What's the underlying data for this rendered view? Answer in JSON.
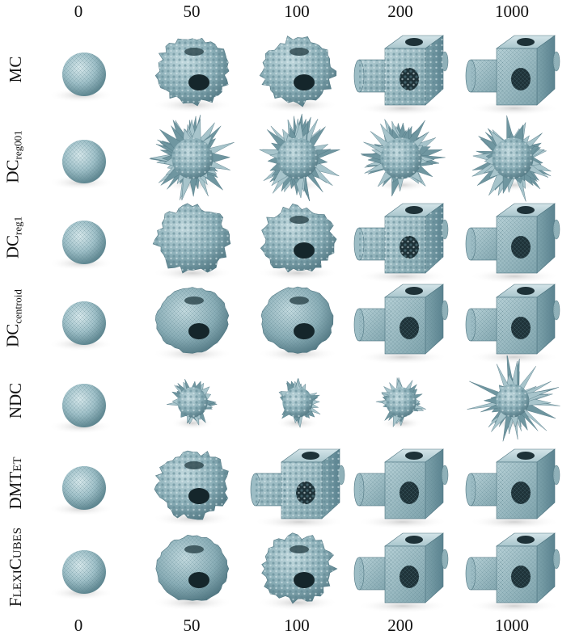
{
  "columns_top": [
    "0",
    "50",
    "100",
    "200",
    "1000"
  ],
  "columns_bottom": [
    "0",
    "50",
    "100",
    "200",
    "1000"
  ],
  "rows": [
    {
      "label": "MC",
      "sub": "",
      "shapes": [
        "sphere",
        "rough-blob-hole",
        "rough-blob-hole",
        "cube-cyl-rough",
        "cube-cyl-mesh"
      ]
    },
    {
      "label": "DC",
      "sub": "reg001",
      "shapes": [
        "sphere",
        "spiky-blob",
        "spiky-blob",
        "spiky-blob",
        "spiky-blob"
      ]
    },
    {
      "label": "DC",
      "sub": "reg1",
      "shapes": [
        "sphere",
        "rough-blob",
        "rough-blob-hole",
        "cube-cyl-rough",
        "cube-cyl-mesh"
      ]
    },
    {
      "label": "DC",
      "sub": "centroid",
      "shapes": [
        "sphere",
        "smooth-blob-hole",
        "smooth-blob-hole",
        "cube-cyl-mesh",
        "cube-cyl-mesh"
      ]
    },
    {
      "label": "NDC",
      "sub": "",
      "shapes": [
        "sphere",
        "small-spiky",
        "small-spiky",
        "small-spiky",
        "large-spiky"
      ]
    },
    {
      "label": "DMTet",
      "sub": "",
      "smallcaps": true,
      "shapes": [
        "sphere",
        "rough-blob-hole",
        "cube-cyl-rough",
        "cube-cyl-mesh",
        "cube-cyl-mesh"
      ]
    },
    {
      "label": "FlexiCubes",
      "sub": "",
      "smallcaps": true,
      "shapes": [
        "sphere",
        "smooth-blob-hole",
        "rough-blob-hole",
        "cube-cyl-mesh",
        "cube-cyl-mesh"
      ]
    }
  ],
  "colors": {
    "mesh": "#8fb4bd",
    "mesh_dark": "#4d7480",
    "mesh_light": "#c8dde1",
    "shadow": "#d9d9d9"
  }
}
